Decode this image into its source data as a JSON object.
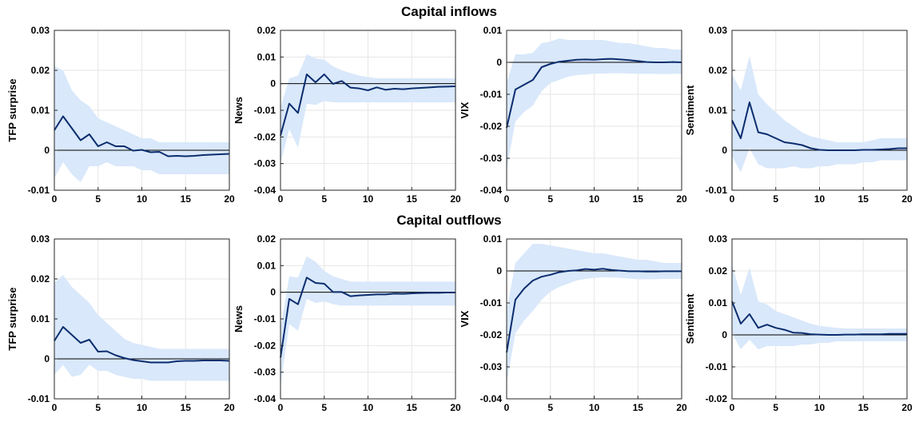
{
  "figure": {
    "row_titles": [
      "Capital inflows",
      "Capital outflows"
    ]
  },
  "chart_data": [
    {
      "type": "line",
      "row": 0,
      "col": 0,
      "title": "",
      "xlabel": "",
      "ylabel": "TFP surprise",
      "xlim": [
        0,
        20
      ],
      "ylim": [
        -0.01,
        0.03
      ],
      "xticks": [
        0,
        5,
        10,
        15,
        20
      ],
      "yticks": [
        -0.01,
        0,
        0.01,
        0.02,
        0.03
      ],
      "ytick_labels": [
        "-0.01",
        "0",
        "0.01",
        "0.02",
        "0.03"
      ],
      "grid": true,
      "zero_line": true,
      "x": [
        0,
        1,
        2,
        3,
        4,
        5,
        6,
        7,
        8,
        9,
        10,
        11,
        12,
        13,
        14,
        15,
        16,
        17,
        18,
        19,
        20
      ],
      "series": [
        {
          "role": "median",
          "values": [
            0.005,
            0.0085,
            0.0055,
            0.0025,
            0.004,
            0.001,
            0.002,
            0.001,
            0.001,
            -0.0001,
            0.0001,
            -0.0005,
            -0.0004,
            -0.0015,
            -0.0014,
            -0.0015,
            -0.0014,
            -0.0012,
            -0.0011,
            -0.001,
            -0.0009
          ]
        },
        {
          "role": "upper_band",
          "values": [
            0.021,
            0.02,
            0.015,
            0.0125,
            0.011,
            0.008,
            0.007,
            0.006,
            0.005,
            0.004,
            0.003,
            0.003,
            0.002,
            0.002,
            0.002,
            0.002,
            0.002,
            0.002,
            0.002,
            0.002,
            0.002
          ]
        },
        {
          "role": "lower_band",
          "values": [
            -0.007,
            -0.003,
            -0.006,
            -0.008,
            -0.004,
            -0.004,
            -0.003,
            -0.004,
            -0.004,
            -0.004,
            -0.005,
            -0.005,
            -0.006,
            -0.006,
            -0.006,
            -0.006,
            -0.006,
            -0.006,
            -0.006,
            -0.006,
            -0.006
          ]
        }
      ]
    },
    {
      "type": "line",
      "row": 0,
      "col": 1,
      "title": "",
      "xlabel": "",
      "ylabel": "News",
      "xlim": [
        0,
        20
      ],
      "ylim": [
        -0.04,
        0.02
      ],
      "xticks": [
        0,
        5,
        10,
        15,
        20
      ],
      "yticks": [
        -0.04,
        -0.03,
        -0.02,
        -0.01,
        0,
        0.01,
        0.02
      ],
      "ytick_labels": [
        "-0.04",
        "-0.03",
        "-0.02",
        "-0.01",
        "0",
        "0.01",
        "0.02"
      ],
      "grid": true,
      "zero_line": true,
      "x": [
        0,
        1,
        2,
        3,
        4,
        5,
        6,
        7,
        8,
        9,
        10,
        11,
        12,
        13,
        14,
        15,
        16,
        17,
        18,
        19,
        20
      ],
      "series": [
        {
          "role": "median",
          "values": [
            -0.0195,
            -0.0075,
            -0.011,
            0.0035,
            0.0005,
            0.0035,
            -0.0001,
            0.001,
            -0.0015,
            -0.0018,
            -0.0025,
            -0.0014,
            -0.0023,
            -0.0019,
            -0.0021,
            -0.0018,
            -0.0016,
            -0.0014,
            -0.0012,
            -0.0011,
            -0.001
          ]
        },
        {
          "role": "upper_band",
          "values": [
            -0.009,
            0.002,
            0.003,
            0.011,
            0.0095,
            0.009,
            0.0065,
            0.005,
            0.004,
            0.003,
            0.0025,
            0.002,
            0.002,
            0.002,
            0.002,
            0.002,
            0.002,
            0.002,
            0.002,
            0.002,
            0.002
          ]
        },
        {
          "role": "lower_band",
          "values": [
            -0.03,
            -0.017,
            -0.024,
            -0.0075,
            -0.008,
            -0.0065,
            -0.007,
            -0.007,
            -0.007,
            -0.007,
            -0.007,
            -0.007,
            -0.007,
            -0.007,
            -0.007,
            -0.007,
            -0.007,
            -0.007,
            -0.007,
            -0.007,
            -0.007
          ]
        }
      ]
    },
    {
      "type": "line",
      "row": 0,
      "col": 2,
      "title": "",
      "xlabel": "",
      "ylabel": "VIX",
      "xlim": [
        0,
        20
      ],
      "ylim": [
        -0.04,
        0.01
      ],
      "xticks": [
        0,
        5,
        10,
        15,
        20
      ],
      "yticks": [
        -0.04,
        -0.03,
        -0.02,
        -0.01,
        0,
        0.01
      ],
      "ytick_labels": [
        "-0.04",
        "-0.03",
        "-0.02",
        "-0.01",
        "0",
        "0.01"
      ],
      "grid": true,
      "zero_line": true,
      "x": [
        0,
        1,
        2,
        3,
        4,
        5,
        6,
        7,
        8,
        9,
        10,
        11,
        12,
        13,
        14,
        15,
        16,
        17,
        18,
        19,
        20
      ],
      "series": [
        {
          "role": "median",
          "values": [
            -0.0205,
            -0.0085,
            -0.007,
            -0.0055,
            -0.0015,
            -0.0005,
            0.0002,
            0.0005,
            0.0008,
            0.0009,
            0.0008,
            0.001,
            0.0011,
            0.0009,
            0.0007,
            0.0004,
            0.0001,
            0.0,
            0.0,
            0.0001,
            0.0
          ]
        },
        {
          "role": "upper_band",
          "values": [
            -0.0065,
            0.0025,
            0.0025,
            0.003,
            0.006,
            0.0065,
            0.0075,
            0.007,
            0.007,
            0.007,
            0.007,
            0.007,
            0.0065,
            0.006,
            0.006,
            0.0055,
            0.005,
            0.0045,
            0.0045,
            0.004,
            0.004
          ]
        },
        {
          "role": "lower_band",
          "values": [
            -0.0335,
            -0.0185,
            -0.0155,
            -0.0135,
            -0.009,
            -0.0065,
            -0.0055,
            -0.0045,
            -0.004,
            -0.0038,
            -0.0036,
            -0.0035,
            -0.0034,
            -0.0034,
            -0.0035,
            -0.0036,
            -0.0036,
            -0.0036,
            -0.0037,
            -0.0036,
            -0.0036
          ]
        }
      ]
    },
    {
      "type": "line",
      "row": 0,
      "col": 3,
      "title": "",
      "xlabel": "",
      "ylabel": "Sentiment",
      "xlim": [
        0,
        20
      ],
      "ylim": [
        -0.01,
        0.03
      ],
      "xticks": [
        0,
        5,
        10,
        15,
        20
      ],
      "yticks": [
        -0.01,
        0,
        0.01,
        0.02,
        0.03
      ],
      "ytick_labels": [
        "-0.01",
        "0",
        "0.01",
        "0.02",
        "0.03"
      ],
      "grid": true,
      "zero_line": true,
      "x": [
        0,
        1,
        2,
        3,
        4,
        5,
        6,
        7,
        8,
        9,
        10,
        11,
        12,
        13,
        14,
        15,
        16,
        17,
        18,
        19,
        20
      ],
      "series": [
        {
          "role": "median",
          "values": [
            0.0075,
            0.003,
            0.012,
            0.0045,
            0.004,
            0.003,
            0.002,
            0.0017,
            0.0013,
            0.0005,
            0.0001,
            0.0,
            0.0,
            0.0,
            0.0,
            0.0001,
            0.0001,
            0.0002,
            0.0003,
            0.0005,
            0.0005
          ]
        },
        {
          "role": "upper_band",
          "values": [
            0.019,
            0.015,
            0.0235,
            0.014,
            0.0115,
            0.0095,
            0.0075,
            0.006,
            0.0045,
            0.0035,
            0.003,
            0.0025,
            0.002,
            0.002,
            0.002,
            0.002,
            0.0025,
            0.003,
            0.003,
            0.003,
            0.003
          ]
        },
        {
          "role": "lower_band",
          "values": [
            -0.0015,
            -0.0055,
            0.0005,
            -0.0035,
            -0.0045,
            -0.0045,
            -0.0045,
            -0.004,
            -0.0045,
            -0.0045,
            -0.004,
            -0.004,
            -0.0035,
            -0.0035,
            -0.0035,
            -0.003,
            -0.003,
            -0.0025,
            -0.0025,
            -0.0025,
            -0.0025
          ]
        }
      ]
    },
    {
      "type": "line",
      "row": 1,
      "col": 0,
      "title": "",
      "xlabel": "",
      "ylabel": "TFP surprise",
      "xlim": [
        0,
        20
      ],
      "ylim": [
        -0.01,
        0.03
      ],
      "xticks": [
        0,
        5,
        10,
        15,
        20
      ],
      "yticks": [
        -0.01,
        0,
        0.01,
        0.02,
        0.03
      ],
      "ytick_labels": [
        "-0.01",
        "0",
        "0.01",
        "0.02",
        "0.03"
      ],
      "grid": true,
      "zero_line": true,
      "x": [
        0,
        1,
        2,
        3,
        4,
        5,
        6,
        7,
        8,
        9,
        10,
        11,
        12,
        13,
        14,
        15,
        16,
        17,
        18,
        19,
        20
      ],
      "series": [
        {
          "role": "median",
          "values": [
            0.0045,
            0.008,
            0.006,
            0.004,
            0.0048,
            0.0018,
            0.0019,
            0.0009,
            0.0002,
            -0.0003,
            -0.0006,
            -0.0009,
            -0.0009,
            -0.0009,
            -0.0006,
            -0.0005,
            -0.0005,
            -0.0004,
            -0.0004,
            -0.0004,
            -0.0005
          ]
        },
        {
          "role": "upper_band",
          "values": [
            0.019,
            0.021,
            0.018,
            0.016,
            0.014,
            0.011,
            0.009,
            0.007,
            0.005,
            0.004,
            0.0035,
            0.003,
            0.0025,
            0.0025,
            0.0025,
            0.0025,
            0.0025,
            0.0025,
            0.0025,
            0.0025,
            0.0025
          ]
        },
        {
          "role": "lower_band",
          "values": [
            -0.004,
            -0.0015,
            -0.0045,
            -0.004,
            -0.0015,
            -0.003,
            -0.003,
            -0.004,
            -0.0045,
            -0.005,
            -0.005,
            -0.0055,
            -0.0055,
            -0.0055,
            -0.0055,
            -0.0055,
            -0.0055,
            -0.0055,
            -0.0055,
            -0.0055,
            -0.0055
          ]
        }
      ]
    },
    {
      "type": "line",
      "row": 1,
      "col": 1,
      "title": "",
      "xlabel": "",
      "ylabel": "News",
      "xlim": [
        0,
        20
      ],
      "ylim": [
        -0.04,
        0.02
      ],
      "xticks": [
        0,
        5,
        10,
        15,
        20
      ],
      "yticks": [
        -0.04,
        -0.03,
        -0.02,
        -0.01,
        0,
        0.01,
        0.02
      ],
      "ytick_labels": [
        "-0.04",
        "-0.03",
        "-0.02",
        "-0.01",
        "0",
        "0.01",
        "0.02"
      ],
      "grid": true,
      "zero_line": true,
      "x": [
        0,
        1,
        2,
        3,
        4,
        5,
        6,
        7,
        8,
        9,
        10,
        11,
        12,
        13,
        14,
        15,
        16,
        17,
        18,
        19,
        20
      ],
      "series": [
        {
          "role": "median",
          "values": [
            -0.0245,
            -0.0025,
            -0.0045,
            0.0055,
            0.0035,
            0.0032,
            0.0001,
            0.0001,
            -0.0015,
            -0.0012,
            -0.001,
            -0.0008,
            -0.0008,
            -0.0005,
            -0.0006,
            -0.0004,
            -0.0003,
            -0.0002,
            -0.0002,
            -0.0001,
            -0.0001
          ]
        },
        {
          "role": "upper_band",
          "values": [
            -0.0135,
            0.006,
            0.0055,
            0.0135,
            0.0115,
            0.008,
            0.006,
            0.005,
            0.004,
            0.004,
            0.004,
            0.004,
            0.004,
            0.004,
            0.004,
            0.004,
            0.004,
            0.004,
            0.004,
            0.004,
            0.004
          ]
        },
        {
          "role": "lower_band",
          "values": [
            -0.035,
            -0.012,
            -0.0145,
            -0.0025,
            -0.004,
            -0.0035,
            -0.0045,
            -0.005,
            -0.005,
            -0.005,
            -0.005,
            -0.005,
            -0.005,
            -0.005,
            -0.005,
            -0.005,
            -0.005,
            -0.005,
            -0.005,
            -0.005,
            -0.005
          ]
        }
      ]
    },
    {
      "type": "line",
      "row": 1,
      "col": 2,
      "title": "",
      "xlabel": "",
      "ylabel": "VIX",
      "xlim": [
        0,
        20
      ],
      "ylim": [
        -0.04,
        0.01
      ],
      "xticks": [
        0,
        5,
        10,
        15,
        20
      ],
      "yticks": [
        -0.04,
        -0.03,
        -0.02,
        -0.01,
        0,
        0.01
      ],
      "ytick_labels": [
        "-0.04",
        "-0.03",
        "-0.02",
        "-0.01",
        "0",
        "0.01"
      ],
      "grid": true,
      "zero_line": true,
      "x": [
        0,
        1,
        2,
        3,
        4,
        5,
        6,
        7,
        8,
        9,
        10,
        11,
        12,
        13,
        14,
        15,
        16,
        17,
        18,
        19,
        20
      ],
      "series": [
        {
          "role": "median",
          "values": [
            -0.0255,
            -0.009,
            -0.0055,
            -0.003,
            -0.0018,
            -0.0012,
            -0.0004,
            0.0,
            0.0002,
            0.0006,
            0.0004,
            0.0007,
            0.0003,
            0.0001,
            -0.0001,
            -0.0001,
            -0.0002,
            -0.0002,
            -0.0001,
            -0.0001,
            -0.0001
          ]
        },
        {
          "role": "upper_band",
          "values": [
            -0.0125,
            0.0025,
            0.0055,
            0.0085,
            0.0085,
            0.008,
            0.0075,
            0.007,
            0.0065,
            0.006,
            0.0055,
            0.0055,
            0.005,
            0.0045,
            0.004,
            0.0035,
            0.0035,
            0.003,
            0.0025,
            0.0025,
            0.0025
          ]
        },
        {
          "role": "lower_band",
          "values": [
            -0.035,
            -0.0195,
            -0.0155,
            -0.0125,
            -0.009,
            -0.0065,
            -0.005,
            -0.004,
            -0.003,
            -0.0025,
            -0.0022,
            -0.002,
            -0.002,
            -0.0022,
            -0.0024,
            -0.0026,
            -0.0026,
            -0.0026,
            -0.0025,
            -0.0025,
            -0.0025
          ]
        }
      ]
    },
    {
      "type": "line",
      "row": 1,
      "col": 3,
      "title": "",
      "xlabel": "",
      "ylabel": "Sentiment",
      "xlim": [
        0,
        20
      ],
      "ylim": [
        -0.02,
        0.03
      ],
      "xticks": [
        0,
        5,
        10,
        15,
        20
      ],
      "yticks": [
        -0.02,
        -0.01,
        0,
        0.01,
        0.02,
        0.03
      ],
      "ytick_labels": [
        "-0.02",
        "-0.01",
        "0",
        "0.01",
        "0.02",
        "0.03"
      ],
      "grid": true,
      "zero_line": true,
      "x": [
        0,
        1,
        2,
        3,
        4,
        5,
        6,
        7,
        8,
        9,
        10,
        11,
        12,
        13,
        14,
        15,
        16,
        17,
        18,
        19,
        20
      ],
      "series": [
        {
          "role": "median",
          "values": [
            0.0105,
            0.0035,
            0.0065,
            0.0022,
            0.0032,
            0.0022,
            0.0016,
            0.0007,
            0.0006,
            0.0002,
            0.0001,
            0.0,
            0.0,
            0.0001,
            0.0001,
            0.0002,
            0.0002,
            0.0002,
            0.0003,
            0.0003,
            0.0003
          ]
        },
        {
          "role": "upper_band",
          "values": [
            0.022,
            0.0125,
            0.021,
            0.0105,
            0.0095,
            0.0075,
            0.0065,
            0.0055,
            0.0045,
            0.0035,
            0.0028,
            0.0025,
            0.0022,
            0.002,
            0.002,
            0.002,
            0.002,
            0.002,
            0.002,
            0.002,
            0.002
          ]
        },
        {
          "role": "lower_band",
          "values": [
            0.0005,
            -0.0045,
            -0.0015,
            -0.0045,
            -0.0035,
            -0.0035,
            -0.0035,
            -0.0035,
            -0.003,
            -0.003,
            -0.0025,
            -0.0025,
            -0.002,
            -0.002,
            -0.002,
            -0.002,
            -0.002,
            -0.002,
            -0.002,
            -0.002,
            -0.002
          ]
        }
      ]
    }
  ],
  "colors": {
    "median_line": "#0b2d6e",
    "band_fill": "#d9e8fa",
    "zero_line": "#000000",
    "axis": "#262626",
    "grid": "#e6e6e6",
    "text": "#000000"
  }
}
